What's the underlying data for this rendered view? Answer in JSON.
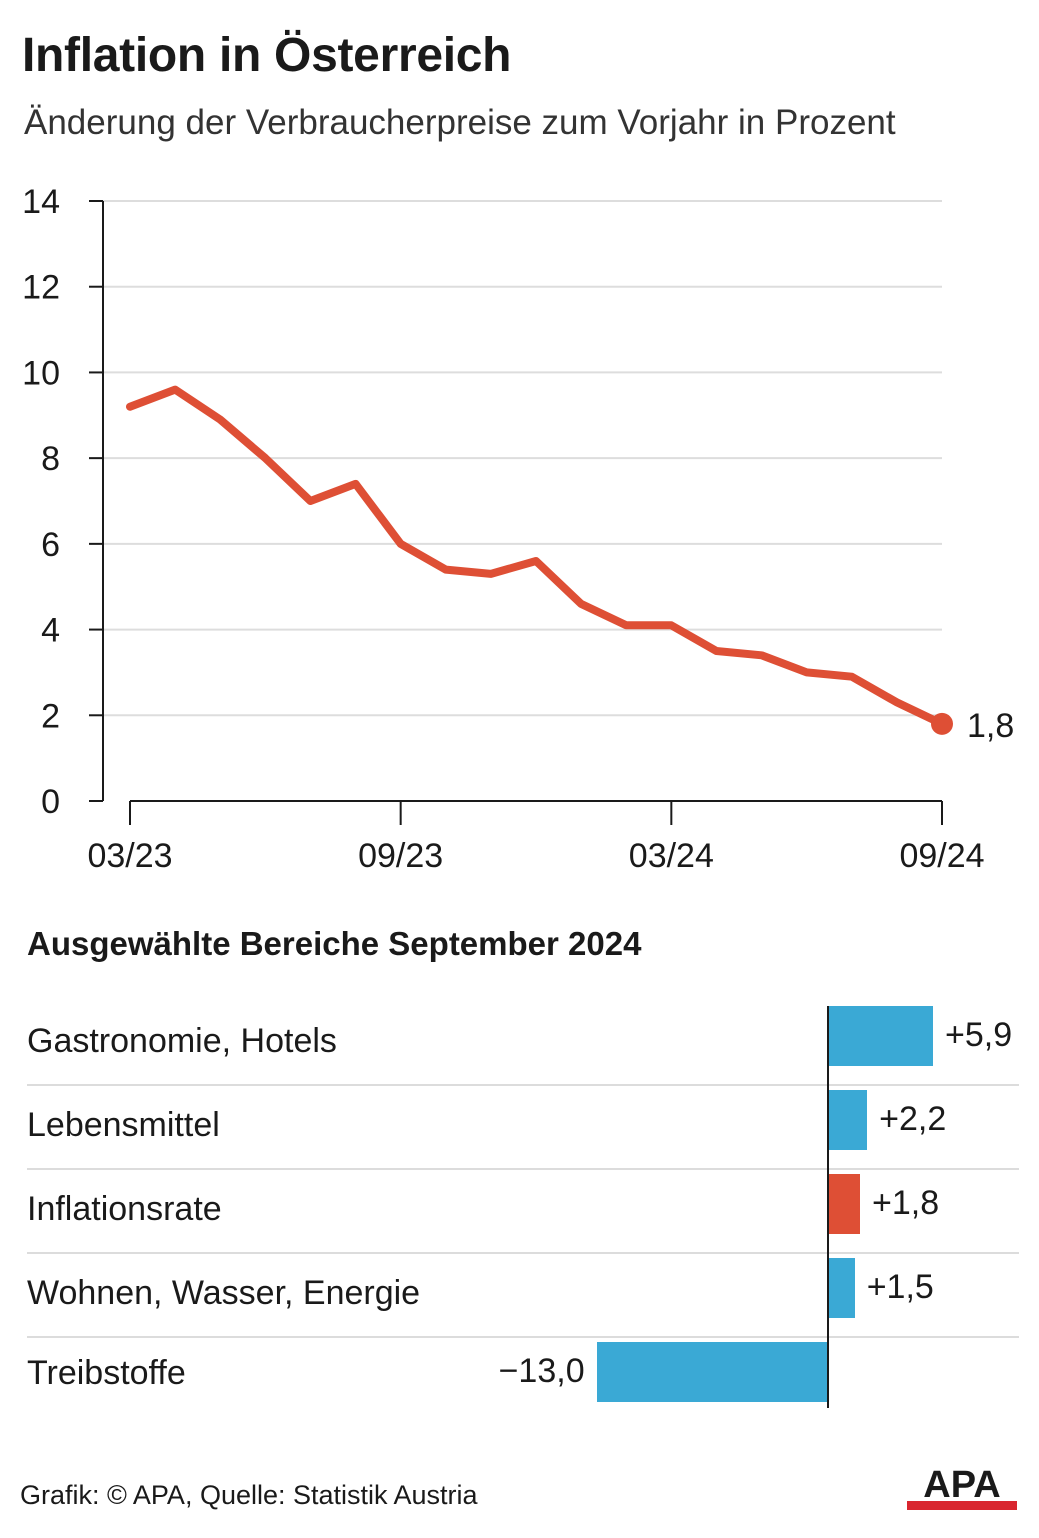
{
  "title": "Inflation in Österreich",
  "subtitle": "Änderung der Verbraucherpreise zum Vorjahr in Prozent",
  "chart_data": [
    {
      "type": "line",
      "x": [
        "03/23",
        "04/23",
        "05/23",
        "06/23",
        "07/23",
        "08/23",
        "09/23",
        "10/23",
        "11/23",
        "12/23",
        "01/24",
        "02/24",
        "03/24",
        "04/24",
        "05/24",
        "06/24",
        "07/24",
        "08/24",
        "09/24"
      ],
      "series": [
        {
          "values": [
            9.2,
            9.6,
            8.9,
            8.0,
            7.0,
            7.4,
            6.0,
            5.4,
            5.3,
            5.6,
            4.6,
            4.1,
            4.1,
            3.5,
            3.4,
            3.0,
            2.9,
            2.3,
            1.8
          ]
        }
      ],
      "ylim": [
        0,
        14
      ],
      "yticks": [
        "0",
        "2",
        "4",
        "6",
        "8",
        "10",
        "12",
        "14"
      ],
      "xticks": [
        "03/23",
        "09/23",
        "03/24",
        "09/24"
      ],
      "end_label": "1,8",
      "grid": true,
      "color": "#de4f35"
    },
    {
      "type": "bar",
      "title": "Ausgewählte Bereiche September 2024",
      "categories": [
        "Gastronomie, Hotels",
        "Lebensmittel",
        "Inflationsrate",
        "Wohnen, Wasser, Energie",
        "Treibstoffe"
      ],
      "values": [
        5.9,
        2.2,
        1.8,
        1.5,
        -13.0
      ],
      "value_labels": [
        "+5,9",
        "+2,2",
        "+1,8",
        "+1,5",
        "−13,0"
      ],
      "colors": [
        "#3aa9d5",
        "#3aa9d5",
        "#de4f35",
        "#3aa9d5",
        "#3aa9d5"
      ],
      "orientation": "horizontal"
    }
  ],
  "footer": "Grafik: © APA, Quelle: Statistik Austria",
  "logo_text": "APA",
  "colors": {
    "line": "#de4f35",
    "highlight": "#de4f35",
    "bar": "#3aa9d5",
    "logo_red": "#d9262f"
  }
}
